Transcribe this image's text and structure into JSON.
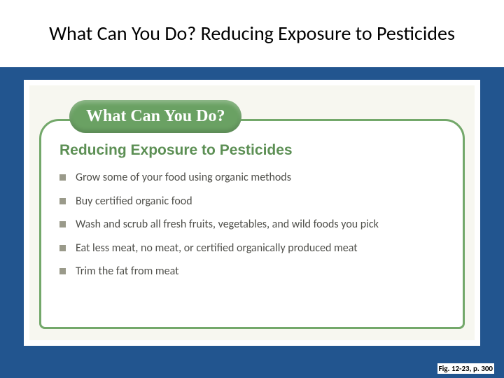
{
  "colors": {
    "slide_bg": "#22558f",
    "header_bg": "#ffffff",
    "content_bg": "#ffffff",
    "inner_bg": "#f7f7f0",
    "box_border": "#73a86a",
    "pill_bg": "#6aa163",
    "pill_text": "#ffffff",
    "subtitle_color": "#5c8f54",
    "bullet_color": "#9a9a8a",
    "item_text_color": "#4f4f4a",
    "title_color": "#000000"
  },
  "header": {
    "title": "What Can You Do? Reducing Exposure to Pesticides"
  },
  "pill": {
    "text": "What Can You Do?"
  },
  "subtitle": "Reducing Exposure to Pesticides",
  "items": [
    "Grow some of your food using organic methods",
    "Buy certified organic food",
    "Wash and scrub all fresh fruits, vegetables, and wild foods you pick",
    "Eat less meat, no meat, or certified organically produced meat",
    "Trim the fat from meat"
  ],
  "figref": "Fig. 12-23, p. 300"
}
